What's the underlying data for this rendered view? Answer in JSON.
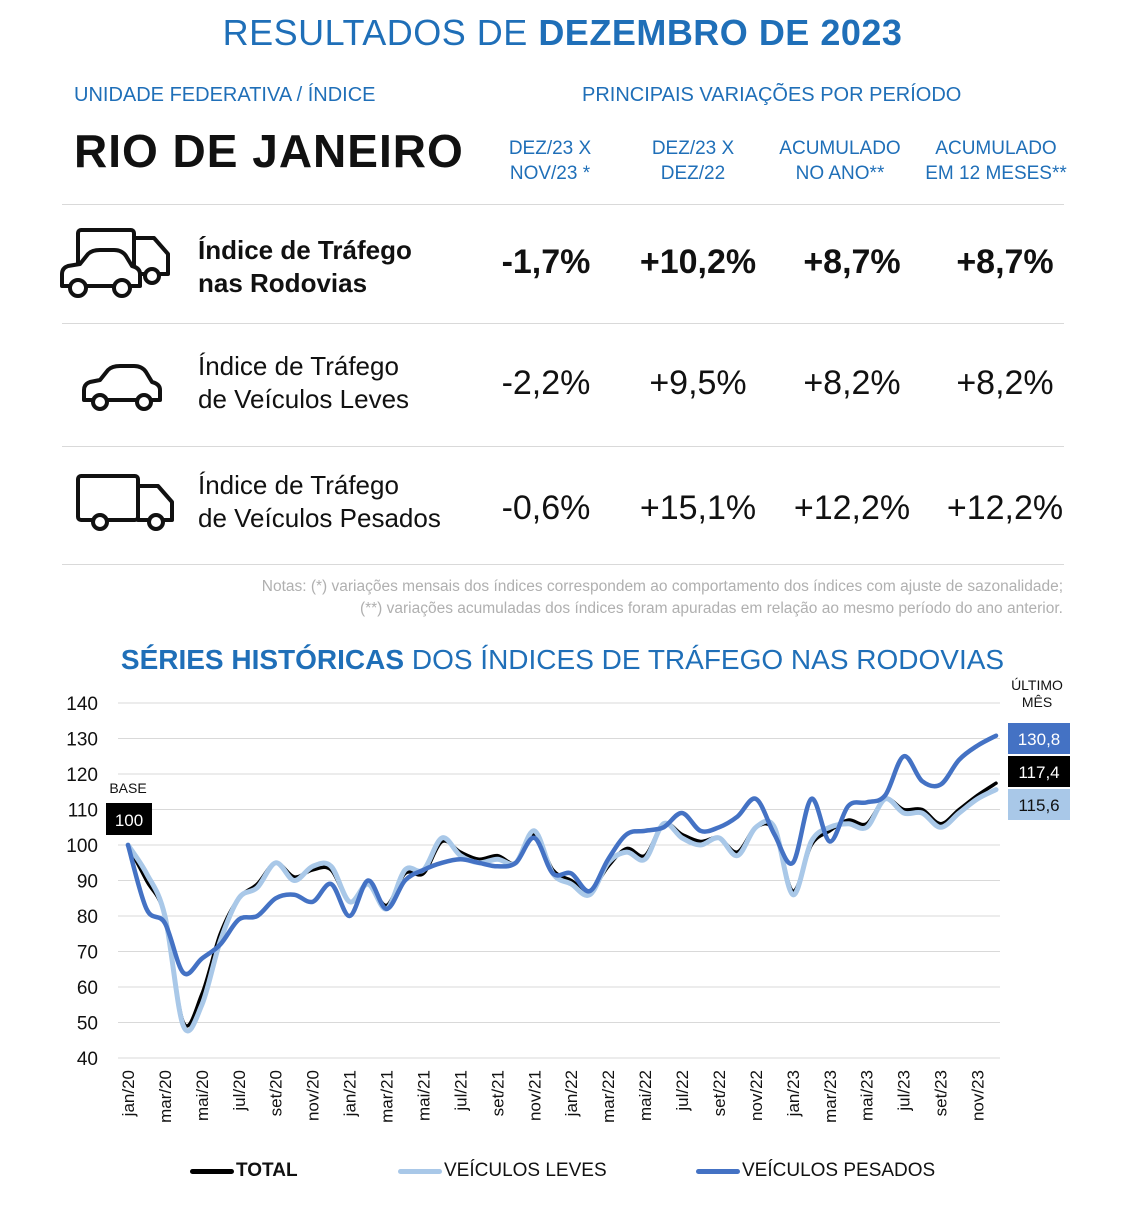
{
  "header": {
    "title_prefix": "RESULTADOS DE ",
    "title_bold": "DEZEMBRO DE 2023",
    "uf_label": "UNIDADE FEDERATIVA / ÍNDICE",
    "variations_label": "PRINCIPAIS VARIAÇÕES POR PERÍODO",
    "state": "RIO DE JANEIRO"
  },
  "columns": [
    {
      "line1": "DEZ/23 X",
      "line2": "NOV/23 *"
    },
    {
      "line1": "DEZ/23 X",
      "line2": "DEZ/22"
    },
    {
      "line1": "ACUMULADO",
      "line2": "NO ANO**"
    },
    {
      "line1": "ACUMULADO",
      "line2": "EM 12 MESES**"
    }
  ],
  "rows": [
    {
      "icon": "car-and-truck-icon",
      "line1": "Índice de Tráfego",
      "line2": "nas Rodovias",
      "values": [
        "-1,7%",
        "+10,2%",
        "+8,7%",
        "+8,7%"
      ]
    },
    {
      "icon": "car-icon",
      "line1": "Índice de Tráfego",
      "line2": "de Veículos Leves",
      "values": [
        "-2,2%",
        "+9,5%",
        "+8,2%",
        "+8,2%"
      ]
    },
    {
      "icon": "truck-icon",
      "line1": "Índice de Tráfego",
      "line2": "de Veículos Pesados",
      "values": [
        "-0,6%",
        "+15,1%",
        "+12,2%",
        "+12,2%"
      ]
    }
  ],
  "notes": {
    "line1": "Notas: (*) variações mensais dos índices correspondem ao comportamento dos índices com ajuste de sazonalidade;",
    "line2": "(**) variações acumuladas dos índices foram apuradas em relação ao mesmo período do ano anterior."
  },
  "chart_title": {
    "bold": "SÉRIES HISTÓRICAS",
    "rest": " DOS ÍNDICES DE TRÁFEGO NAS RODOVIAS"
  },
  "colors": {
    "total": "#000000",
    "leves": "#a9c8e8",
    "pesados": "#4472c4",
    "accent": "#1f6fb8"
  },
  "chart_data": {
    "type": "line",
    "title": "SÉRIES HISTÓRICAS DOS ÍNDICES DE TRÁFEGO NAS RODOVIAS",
    "ylim": [
      40,
      140
    ],
    "yticks": [
      40,
      50,
      60,
      70,
      80,
      90,
      100,
      110,
      120,
      130,
      140
    ],
    "grid": true,
    "legend_position": "bottom",
    "x": [
      "jan/20",
      "fev/20",
      "mar/20",
      "abr/20",
      "mai/20",
      "jun/20",
      "jul/20",
      "ago/20",
      "set/20",
      "out/20",
      "nov/20",
      "dez/20",
      "jan/21",
      "fev/21",
      "mar/21",
      "abr/21",
      "mai/21",
      "jun/21",
      "jul/21",
      "ago/21",
      "set/21",
      "out/21",
      "nov/21",
      "dez/21",
      "jan/22",
      "fev/22",
      "mar/22",
      "abr/22",
      "mai/22",
      "jun/22",
      "jul/22",
      "ago/22",
      "set/22",
      "out/22",
      "nov/22",
      "dez/22",
      "jan/23",
      "fev/23",
      "mar/23",
      "abr/23",
      "mai/23",
      "jun/23",
      "jul/23",
      "ago/23",
      "set/23",
      "out/23",
      "nov/23",
      "dez/23"
    ],
    "x_tick_labels": [
      "jan/20",
      "mar/20",
      "mai/20",
      "jul/20",
      "set/20",
      "nov/20",
      "jan/21",
      "mar/21",
      "mai/21",
      "jul/21",
      "set/21",
      "nov/21",
      "jan/22",
      "mar/22",
      "mai/22",
      "jul/22",
      "set/22",
      "nov/22",
      "jan/23",
      "mar/23",
      "mai/23",
      "jul/23",
      "set/23",
      "nov/23"
    ],
    "series": [
      {
        "name": "TOTAL",
        "color": "#000000",
        "values": [
          100,
          90,
          80,
          50,
          58,
          75,
          85,
          89,
          95,
          91,
          93,
          93,
          84,
          89,
          83,
          92,
          92,
          101,
          98,
          96,
          97,
          95,
          103,
          93,
          90,
          87,
          94,
          99,
          97,
          106,
          103,
          101,
          102,
          98,
          105,
          104,
          87,
          100,
          104,
          107,
          106,
          113,
          110,
          110,
          106,
          110,
          114,
          117.4
        ]
      },
      {
        "name": "VEÍCULOS LEVES",
        "color": "#a9c8e8",
        "values": [
          100,
          92,
          80,
          49,
          55,
          73,
          85,
          88,
          95,
          90,
          94,
          94,
          84,
          89,
          82,
          93,
          93,
          102,
          97,
          95,
          96,
          95,
          104,
          92,
          89,
          86,
          95,
          98,
          96,
          106,
          102,
          100,
          102,
          97,
          105,
          105,
          86,
          101,
          105,
          106,
          105,
          113,
          109,
          109,
          105,
          109,
          113,
          115.6
        ]
      },
      {
        "name": "VEÍCULOS PESADOS",
        "color": "#4472c4",
        "values": [
          100,
          82,
          78,
          64,
          68,
          72,
          79,
          80,
          85,
          86,
          84,
          89,
          80,
          90,
          82,
          90,
          93,
          95,
          96,
          95,
          94,
          95,
          102,
          92,
          92,
          87,
          96,
          103,
          104,
          105,
          109,
          104,
          105,
          108,
          113,
          103,
          95,
          113,
          101,
          111,
          112,
          114,
          125,
          118,
          117,
          124,
          128,
          130.8
        ]
      }
    ],
    "annotations": {
      "base_label": "BASE",
      "base_value": "100",
      "last_label_line1": "ÚLTIMO",
      "last_label_line2": "MÊS",
      "last_values": [
        "130,8",
        "117,4",
        "115,6"
      ]
    }
  }
}
